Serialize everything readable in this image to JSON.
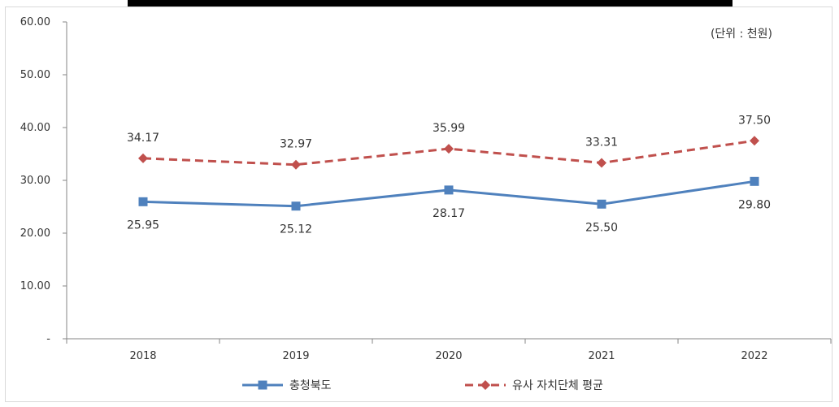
{
  "chart_data": {
    "type": "line",
    "categories": [
      "2018",
      "2019",
      "2020",
      "2021",
      "2022"
    ],
    "y_ticks": [
      "-",
      "10.00",
      "20.00",
      "30.00",
      "40.00",
      "50.00",
      "60.00"
    ],
    "ylim": [
      0,
      60
    ],
    "unit_note": "(단위 : 천원)",
    "grid": false,
    "legend_position": "bottom",
    "series": [
      {
        "name": "충청북도",
        "values": [
          25.95,
          25.12,
          28.17,
          25.5,
          29.8
        ],
        "labels": [
          "25.95",
          "25.12",
          "28.17",
          "25.50",
          "29.80"
        ],
        "color": "#4f81bd",
        "line_style": "solid",
        "marker": "square",
        "label_placement": "below"
      },
      {
        "name": "유사 자치단체 평균",
        "values": [
          34.17,
          32.97,
          35.99,
          33.31,
          37.5
        ],
        "labels": [
          "34.17",
          "32.97",
          "35.99",
          "33.31",
          "37.50"
        ],
        "color": "#c0504d",
        "line_style": "dashed",
        "marker": "diamond",
        "label_placement": "above"
      }
    ]
  }
}
